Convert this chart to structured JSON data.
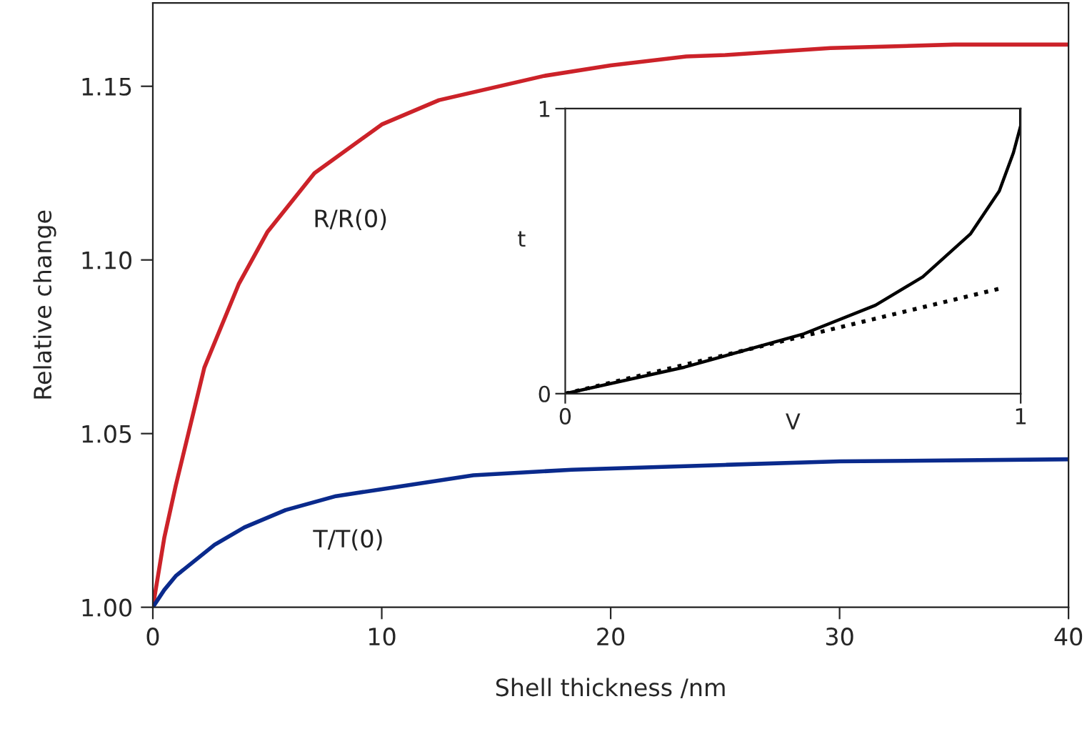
{
  "chart_data": [
    {
      "type": "line",
      "xlabel": "Shell thickness /nm",
      "ylabel": "Relative change",
      "xlim": [
        0,
        40
      ],
      "ylim": [
        1.0,
        1.174
      ],
      "xticks": [
        0,
        10,
        20,
        30,
        40
      ],
      "yticks": [
        {
          "value": 1.0,
          "label": "1.00"
        },
        {
          "value": 1.05,
          "label": "1.05"
        },
        {
          "value": 1.1,
          "label": "1.10"
        },
        {
          "value": 1.15,
          "label": "1.15"
        }
      ],
      "grid": false,
      "legend": false,
      "series": [
        {
          "name": "R/R(0)",
          "color": "#cc2229",
          "x": [
            0,
            0.5,
            1,
            2.25,
            3.75,
            5,
            7.06,
            10,
            12.5,
            17.1,
            20,
            23.3,
            25,
            29.6,
            35,
            40
          ],
          "values": [
            1.0,
            1.02,
            1.035,
            1.069,
            1.093,
            1.108,
            1.125,
            1.139,
            1.146,
            1.153,
            1.156,
            1.1586,
            1.159,
            1.161,
            1.162,
            1.162
          ]
        },
        {
          "name": "T/T(0)",
          "color": "#0a2a8c",
          "x": [
            0,
            0.5,
            1,
            2.7,
            4,
            5.8,
            8,
            10,
            14,
            18.3,
            25,
            30,
            40
          ],
          "values": [
            1.0,
            1.005,
            1.009,
            1.018,
            1.023,
            1.028,
            1.032,
            1.034,
            1.038,
            1.0396,
            1.041,
            1.042,
            1.0426
          ]
        }
      ]
    },
    {
      "type": "line",
      "xlabel": "V",
      "ylabel": "t",
      "xlim": [
        0,
        1
      ],
      "ylim": [
        0,
        1
      ],
      "xticks": [
        0,
        1
      ],
      "yticks": [
        0,
        1
      ],
      "grid": false,
      "legend": false,
      "series": [
        {
          "color": "#000000",
          "line_style": "solid",
          "x": [
            0,
            0.262,
            0.524,
            0.681,
            0.785,
            0.89,
            0.953,
            0.984,
            1.0,
            1.0
          ],
          "values": [
            0,
            0.093,
            0.21,
            0.31,
            0.41,
            0.561,
            0.711,
            0.845,
            0.94,
            1.0
          ]
        },
        {
          "color": "#000000",
          "line_style": "dotted",
          "x": [
            0,
            0.963
          ],
          "values": [
            0,
            0.372
          ]
        }
      ]
    }
  ]
}
